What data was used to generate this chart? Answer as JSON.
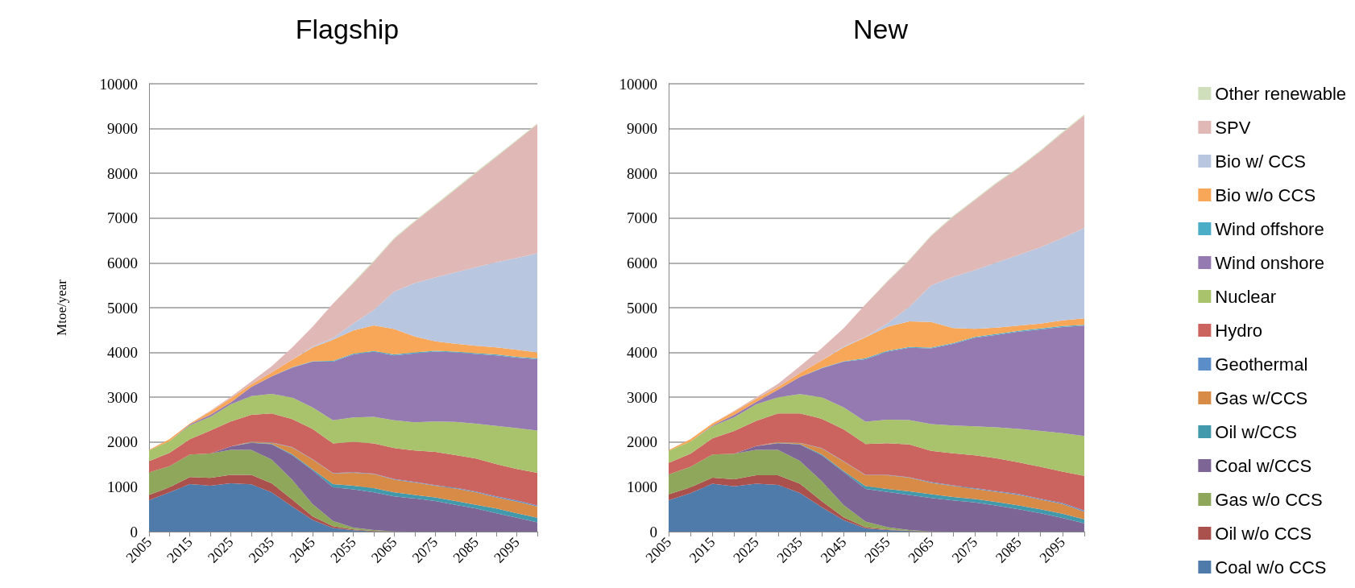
{
  "chart_data": [
    {
      "type": "area",
      "title": "Flagship",
      "ylabel": "Mtoe/year",
      "stacked": true,
      "grid": "y",
      "legend": false,
      "categories": [
        "2005",
        null,
        "2015",
        null,
        "2025",
        null,
        "2035",
        null,
        "2045",
        null,
        "2055",
        null,
        "2065",
        null,
        "2075",
        null,
        "2085",
        null,
        "2095",
        null
      ],
      "ylim": [
        0,
        10000
      ],
      "yticks": [
        0,
        1000,
        2000,
        3000,
        4000,
        5000,
        6000,
        7000,
        8000,
        9000,
        10000
      ],
      "series": [
        {
          "color": "#4f7bab",
          "values": [
            700,
            875,
            1060,
            1025,
            1080,
            1055,
            875,
            560,
            260,
            80,
            30,
            5,
            0,
            0,
            0,
            0,
            0,
            0,
            0,
            0
          ]
        },
        {
          "color": "#aa504d",
          "values": [
            120,
            115,
            160,
            175,
            190,
            215,
            205,
            160,
            80,
            40,
            20,
            10,
            0,
            0,
            0,
            0,
            0,
            0,
            0,
            0
          ]
        },
        {
          "color": "#8fa75a",
          "values": [
            500,
            470,
            500,
            545,
            555,
            555,
            530,
            440,
            275,
            120,
            40,
            20,
            5,
            0,
            0,
            0,
            0,
            0,
            0,
            0
          ]
        },
        {
          "color": "#7d6596",
          "values": [
            0,
            0,
            0,
            0,
            75,
            160,
            340,
            550,
            755,
            750,
            855,
            840,
            780,
            740,
            685,
            600,
            515,
            410,
            310,
            205
          ]
        },
        {
          "color": "#4399ac",
          "values": [
            0,
            0,
            0,
            0,
            0,
            5,
            10,
            20,
            25,
            70,
            80,
            95,
            90,
            80,
            80,
            85,
            85,
            105,
            100,
            105
          ]
        },
        {
          "color": "#d88b46",
          "values": [
            0,
            0,
            0,
            0,
            0,
            15,
            25,
            150,
            215,
            240,
            290,
            315,
            285,
            275,
            260,
            275,
            275,
            250,
            260,
            250
          ]
        },
        {
          "color": "#5b8ec9",
          "values": [
            0,
            0,
            0,
            0,
            0,
            5,
            5,
            10,
            10,
            10,
            10,
            10,
            15,
            15,
            15,
            20,
            20,
            20,
            25,
            25
          ]
        },
        {
          "color": "#cb645f",
          "values": [
            255,
            300,
            345,
            510,
            560,
            600,
            650,
            625,
            675,
            660,
            680,
            675,
            690,
            700,
            740,
            730,
            735,
            720,
            705,
            730
          ]
        },
        {
          "color": "#a9c36c",
          "values": [
            235,
            260,
            310,
            310,
            380,
            415,
            435,
            480,
            480,
            515,
            545,
            595,
            620,
            630,
            680,
            740,
            780,
            855,
            910,
            940
          ]
        },
        {
          "color": "#947ab0",
          "values": [
            0,
            0,
            20,
            45,
            45,
            205,
            390,
            665,
            1020,
            1310,
            1405,
            1450,
            1450,
            1540,
            1560,
            1550,
            1555,
            1575,
            1575,
            1595
          ]
        },
        {
          "color": "#4badc6",
          "values": [
            0,
            0,
            0,
            0,
            0,
            0,
            0,
            10,
            10,
            20,
            20,
            20,
            20,
            20,
            20,
            20,
            20,
            20,
            20,
            20
          ]
        },
        {
          "color": "#f8a657",
          "values": [
            15,
            45,
            20,
            70,
            90,
            55,
            85,
            165,
            305,
            470,
            515,
            570,
            570,
            355,
            210,
            175,
            165,
            160,
            155,
            130
          ]
        },
        {
          "color": "#b8c6e0",
          "values": [
            0,
            0,
            0,
            0,
            0,
            0,
            0,
            0,
            20,
            35,
            160,
            345,
            835,
            1195,
            1425,
            1595,
            1755,
            1900,
            2050,
            2215
          ]
        },
        {
          "color": "#e0b8b6",
          "values": [
            0,
            0,
            0,
            20,
            35,
            65,
            140,
            275,
            445,
            770,
            900,
            1080,
            1180,
            1370,
            1605,
            1855,
            2105,
            2355,
            2620,
            2880
          ]
        },
        {
          "color": "#cfdfbb",
          "values": [
            0,
            0,
            0,
            0,
            0,
            0,
            0,
            0,
            0,
            0,
            20,
            20,
            20,
            20,
            20,
            20,
            20,
            20,
            20,
            20
          ]
        }
      ]
    },
    {
      "type": "area",
      "title": "New",
      "stacked": true,
      "grid": "y",
      "legend": "right",
      "categories": [
        "2005",
        null,
        "2015",
        null,
        "2025",
        null,
        "2035",
        null,
        "2045",
        null,
        "2055",
        null,
        "2065",
        null,
        "2075",
        null,
        "2085",
        null,
        "2095",
        null
      ],
      "ylim": [
        0,
        10000
      ],
      "yticks": [
        0,
        1000,
        2000,
        3000,
        4000,
        5000,
        6000,
        7000,
        8000,
        9000,
        10000
      ],
      "series": [
        {
          "name": "Coal w/o CCS",
          "color": "#4f7bab",
          "values": [
            700,
            860,
            1070,
            1010,
            1070,
            1045,
            865,
            545,
            255,
            70,
            35,
            15,
            0,
            0,
            0,
            0,
            0,
            0,
            0,
            0
          ]
        },
        {
          "name": "Oil w/o CCS",
          "color": "#aa504d",
          "values": [
            130,
            130,
            135,
            160,
            190,
            215,
            205,
            135,
            65,
            30,
            15,
            5,
            0,
            0,
            0,
            0,
            0,
            0,
            0,
            0
          ]
        },
        {
          "name": "Gas w/o CCS",
          "color": "#8fa75a",
          "values": [
            445,
            460,
            515,
            570,
            565,
            565,
            510,
            445,
            275,
            125,
            50,
            15,
            5,
            0,
            0,
            0,
            0,
            0,
            0,
            0
          ]
        },
        {
          "name": "Coal w/CCS",
          "color": "#7d6596",
          "values": [
            0,
            0,
            0,
            0,
            85,
            150,
            365,
            580,
            735,
            730,
            785,
            785,
            745,
            695,
            650,
            580,
            500,
            410,
            305,
            185
          ]
        },
        {
          "name": "Oil w/CCS",
          "color": "#4399ac",
          "values": [
            0,
            0,
            0,
            0,
            0,
            5,
            10,
            20,
            25,
            60,
            70,
            80,
            85,
            80,
            80,
            80,
            85,
            90,
            95,
            90
          ]
        },
        {
          "name": "Gas w/CCS",
          "color": "#d88b46",
          "values": [
            0,
            0,
            0,
            0,
            0,
            15,
            25,
            130,
            210,
            245,
            305,
            305,
            255,
            245,
            225,
            225,
            235,
            215,
            215,
            170
          ]
        },
        {
          "name": "Geothermal",
          "color": "#5b8ec9",
          "values": [
            0,
            0,
            0,
            0,
            0,
            5,
            5,
            10,
            10,
            10,
            10,
            10,
            15,
            15,
            15,
            20,
            20,
            20,
            25,
            25
          ]
        },
        {
          "name": "Hydro",
          "color": "#cb645f",
          "values": [
            260,
            290,
            360,
            510,
            565,
            640,
            655,
            655,
            710,
            685,
            705,
            730,
            700,
            715,
            735,
            730,
            705,
            715,
            700,
            775
          ]
        },
        {
          "name": "Nuclear",
          "color": "#a9c36c",
          "values": [
            270,
            270,
            270,
            305,
            365,
            360,
            430,
            480,
            490,
            500,
            525,
            545,
            595,
            620,
            645,
            695,
            750,
            800,
            860,
            890
          ]
        },
        {
          "name": "Wind onshore",
          "color": "#947ab0",
          "values": [
            0,
            0,
            20,
            55,
            55,
            170,
            385,
            645,
            1020,
            1395,
            1520,
            1615,
            1690,
            1820,
            1980,
            2065,
            2170,
            2265,
            2370,
            2465
          ]
        },
        {
          "name": "Wind offshore",
          "color": "#4badc6",
          "values": [
            0,
            0,
            0,
            0,
            0,
            0,
            0,
            10,
            10,
            20,
            20,
            20,
            20,
            20,
            20,
            20,
            20,
            20,
            20,
            20
          ]
        },
        {
          "name": "Bio w/o CCS",
          "color": "#f8a657",
          "values": [
            15,
            55,
            45,
            70,
            70,
            60,
            85,
            165,
            310,
            470,
            535,
            570,
            570,
            335,
            180,
            140,
            115,
            110,
            125,
            140
          ]
        },
        {
          "name": "Bio w/ CCS",
          "color": "#b8c6e0",
          "values": [
            0,
            0,
            0,
            0,
            0,
            0,
            0,
            0,
            20,
            10,
            75,
            325,
            820,
            1145,
            1310,
            1455,
            1580,
            1705,
            1840,
            2020
          ]
        },
        {
          "name": "SPV",
          "color": "#e0b8b6",
          "values": [
            0,
            0,
            0,
            20,
            35,
            70,
            150,
            275,
            405,
            725,
            930,
            1035,
            1100,
            1340,
            1565,
            1770,
            1940,
            2145,
            2350,
            2515
          ]
        },
        {
          "name": "Other renewable",
          "color": "#cfdfbb",
          "values": [
            0,
            0,
            0,
            0,
            0,
            0,
            0,
            0,
            0,
            0,
            20,
            20,
            20,
            20,
            20,
            20,
            20,
            20,
            20,
            20
          ]
        }
      ]
    }
  ]
}
